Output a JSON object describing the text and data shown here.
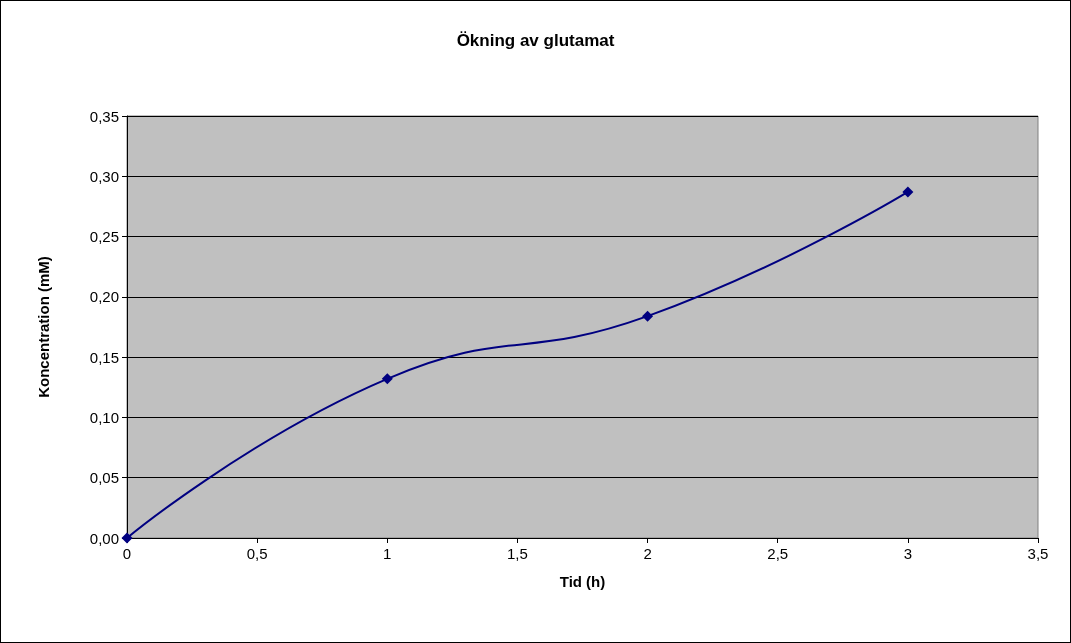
{
  "chart_data": {
    "type": "line",
    "title": "Ökning av glutamat",
    "xlabel": "Tid (h)",
    "ylabel": "Koncentration (mM)",
    "x": [
      0,
      1,
      2,
      3
    ],
    "series": [
      {
        "color": "#000080",
        "values": [
          0,
          0.132,
          0.184,
          0.287
        ]
      }
    ],
    "xlim": [
      0,
      3.5
    ],
    "xticks": [
      0,
      {
        "value": 0.5,
        "label": "0,5"
      },
      1,
      {
        "value": 1.5,
        "label": "1,5"
      },
      2,
      {
        "value": 2.5,
        "label": "2,5"
      },
      3,
      {
        "value": 3.5,
        "label": "3,5"
      }
    ],
    "ylim": [
      0,
      0.35
    ],
    "yticks": [
      {
        "value": 0,
        "label": "0,00"
      },
      {
        "value": 0.05,
        "label": "0,05"
      },
      {
        "value": 0.1,
        "label": "0,10"
      },
      {
        "value": 0.15,
        "label": "0,15"
      },
      {
        "value": 0.2,
        "label": "0,20"
      },
      {
        "value": 0.25,
        "label": "0,25"
      },
      {
        "value": 0.3,
        "label": "0,30"
      },
      {
        "value": 0.35,
        "label": "0,35"
      }
    ],
    "grid": "y",
    "marker": "diamond",
    "line_style": "solid"
  }
}
